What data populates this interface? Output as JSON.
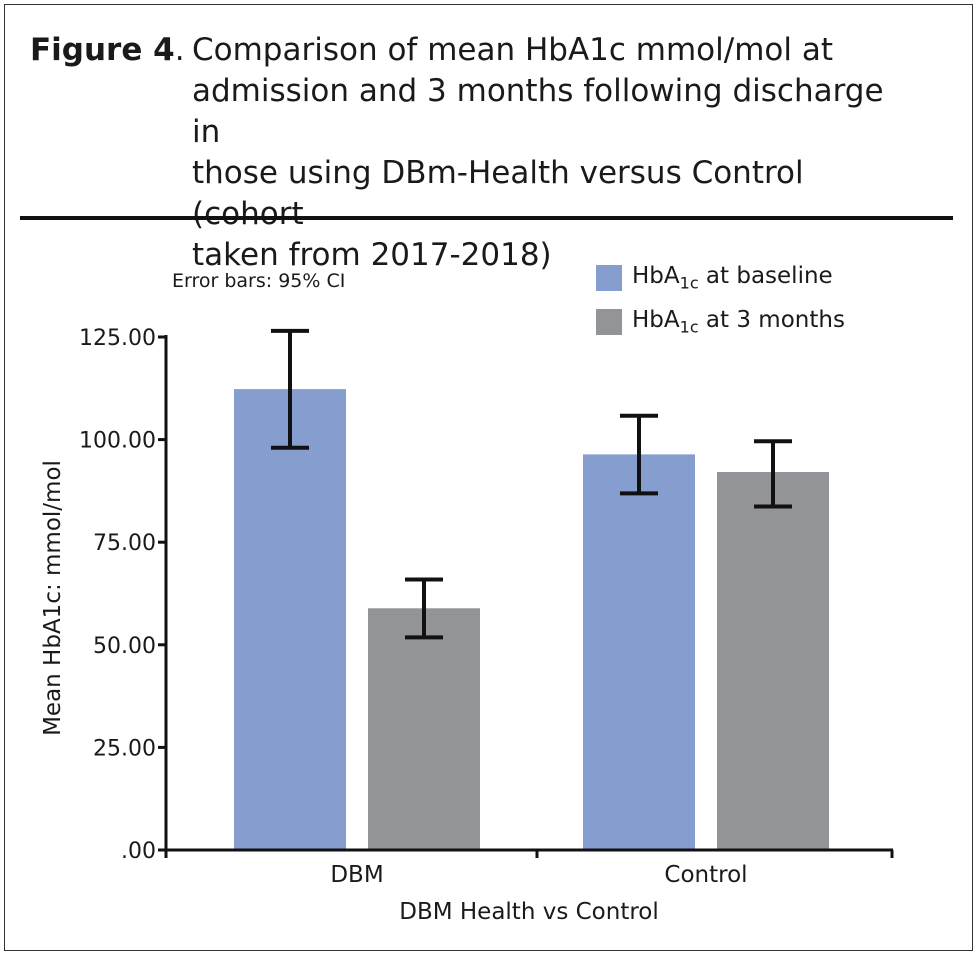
{
  "figure": {
    "label": "Figure 4",
    "label_suffix": ".",
    "caption_lines": [
      "Comparison of mean HbA1c mmol/mol at",
      "admission and 3 months following discharge in",
      "those using DBm-Health versus Control (cohort",
      "taken from 2017-2018)"
    ]
  },
  "chart_data": {
    "type": "bar",
    "title": "Comparison of mean HbA1c mmol/mol at admission and 3 months following discharge in those using DBm-Health versus Control (cohort taken from 2017-2018)",
    "note": "Error bars: 95% CI",
    "categories": [
      "DBM",
      "Control"
    ],
    "xlabel": "DBM Health vs Control",
    "ylabel": "Mean HbA1c: mmol/mol",
    "ylim": [
      0,
      125
    ],
    "yticks": [
      0,
      25,
      50,
      75,
      100,
      125
    ],
    "ytick_labels": [
      ".00",
      "25.00",
      "50.00",
      "75.00",
      "100.00",
      "125.00"
    ],
    "grid": false,
    "legend_position": "top-right",
    "series": [
      {
        "name": "HbA1c at baseline",
        "legend_base": "HbA",
        "legend_sub": "1c",
        "legend_rest": " at baseline",
        "color": "#859dcf",
        "values": [
          112.3,
          96.4
        ],
        "ci_low": [
          98.0,
          86.9
        ],
        "ci_high": [
          126.5,
          105.8
        ]
      },
      {
        "name": "HbA1c at 3 months",
        "legend_base": "HbA",
        "legend_sub": "1c",
        "legend_rest": " at 3 months",
        "color": "#939498",
        "values": [
          58.9,
          92.1
        ],
        "ci_low": [
          51.8,
          83.7
        ],
        "ci_high": [
          65.9,
          99.6
        ]
      }
    ]
  }
}
